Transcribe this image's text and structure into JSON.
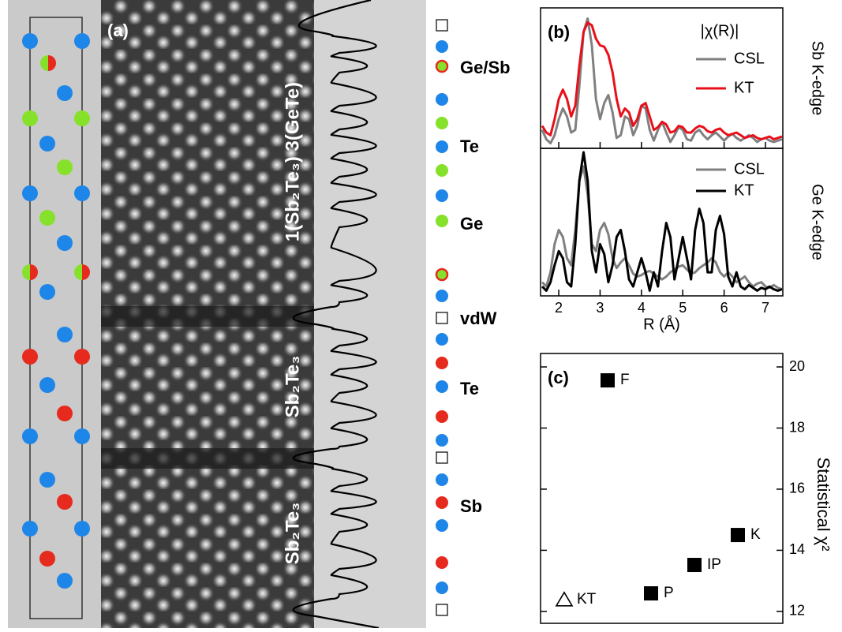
{
  "panel_a": {
    "label": "(a)",
    "layer_labels": [
      "1(Sb₂Te₃) 3(GeTe)",
      "Sb₂Te₃",
      "Sb₂Te₃"
    ],
    "site_labels": [
      "Ge/Sb",
      "Te",
      "Ge",
      "vdW",
      "Te",
      "Sb"
    ]
  },
  "chart_data": [
    {
      "type": "line",
      "panel_label": "(b)",
      "title": "|χ(R)|",
      "side_label": "Sb K-edge",
      "tick_labels": false,
      "x": [
        1.6,
        1.7,
        1.8,
        1.9,
        2.0,
        2.1,
        2.2,
        2.3,
        2.4,
        2.5,
        2.6,
        2.7,
        2.8,
        2.9,
        3.0,
        3.1,
        3.2,
        3.3,
        3.4,
        3.5,
        3.6,
        3.7,
        3.8,
        3.9,
        4.0,
        4.1,
        4.2,
        4.3,
        4.4,
        4.5,
        4.6,
        4.7,
        4.8,
        4.9,
        5.0,
        5.1,
        5.2,
        5.3,
        5.4,
        5.5,
        5.6,
        5.7,
        5.8,
        5.9,
        6.0,
        6.1,
        6.2,
        6.3,
        6.4,
        6.5,
        6.6,
        6.7,
        6.8,
        6.9,
        7.0,
        7.1,
        7.2,
        7.3,
        7.4
      ],
      "series": [
        {
          "name": "CSL",
          "color": "#808080",
          "values": [
            0.12,
            0.05,
            0.02,
            0.08,
            0.2,
            0.28,
            0.22,
            0.1,
            0.12,
            0.45,
            0.85,
            0.95,
            0.75,
            0.35,
            0.2,
            0.32,
            0.38,
            0.25,
            0.06,
            0.08,
            0.22,
            0.2,
            0.08,
            0.15,
            0.3,
            0.28,
            0.12,
            0.04,
            0.12,
            0.18,
            0.1,
            0.03,
            0.08,
            0.14,
            0.12,
            0.05,
            0.04,
            0.1,
            0.12,
            0.08,
            0.05,
            0.08,
            0.1,
            0.07,
            0.04,
            0.07,
            0.09,
            0.06,
            0.04,
            0.06,
            0.08,
            0.06,
            0.03,
            0.05,
            0.06,
            0.04,
            0.03,
            0.04,
            0.05
          ]
        },
        {
          "name": "KT",
          "color": "#e8101a",
          "values": [
            0.15,
            0.1,
            0.08,
            0.2,
            0.35,
            0.42,
            0.35,
            0.22,
            0.3,
            0.6,
            0.85,
            0.92,
            0.9,
            0.8,
            0.75,
            0.74,
            0.68,
            0.55,
            0.35,
            0.22,
            0.28,
            0.25,
            0.15,
            0.2,
            0.3,
            0.32,
            0.22,
            0.12,
            0.14,
            0.18,
            0.16,
            0.1,
            0.11,
            0.15,
            0.14,
            0.1,
            0.1,
            0.13,
            0.15,
            0.14,
            0.11,
            0.1,
            0.12,
            0.13,
            0.1,
            0.08,
            0.09,
            0.1,
            0.08,
            0.06,
            0.07,
            0.08,
            0.06,
            0.05,
            0.06,
            0.07,
            0.05,
            0.06,
            0.07
          ]
        }
      ],
      "xlim": [
        1.56,
        7.42
      ],
      "xticks": [
        2,
        3,
        4,
        5,
        6,
        7
      ],
      "ylim": [
        0,
        1
      ]
    },
    {
      "type": "line",
      "side_label": "Ge K-edge",
      "x_label": "R (Å)",
      "tick_labels": true,
      "x": [
        1.6,
        1.7,
        1.8,
        1.9,
        2.0,
        2.1,
        2.2,
        2.3,
        2.4,
        2.5,
        2.6,
        2.7,
        2.8,
        2.9,
        3.0,
        3.1,
        3.2,
        3.3,
        3.4,
        3.5,
        3.6,
        3.7,
        3.8,
        3.9,
        4.0,
        4.1,
        4.2,
        4.3,
        4.4,
        4.5,
        4.6,
        4.7,
        4.8,
        4.9,
        5.0,
        5.1,
        5.2,
        5.3,
        5.4,
        5.5,
        5.6,
        5.7,
        5.8,
        5.9,
        6.0,
        6.1,
        6.2,
        6.3,
        6.4,
        6.5,
        6.6,
        6.7,
        6.8,
        6.9,
        7.0,
        7.1,
        7.2,
        7.3,
        7.4
      ],
      "series": [
        {
          "name": "CSL",
          "color": "#808080",
          "values": [
            0.08,
            0.05,
            0.15,
            0.35,
            0.45,
            0.4,
            0.25,
            0.2,
            0.45,
            0.8,
            0.9,
            0.7,
            0.35,
            0.3,
            0.45,
            0.5,
            0.42,
            0.25,
            0.18,
            0.22,
            0.25,
            0.2,
            0.14,
            0.12,
            0.13,
            0.15,
            0.16,
            0.14,
            0.12,
            0.1,
            0.12,
            0.15,
            0.17,
            0.19,
            0.2,
            0.17,
            0.14,
            0.15,
            0.18,
            0.2,
            0.22,
            0.25,
            0.22,
            0.15,
            0.12,
            0.15,
            0.12,
            0.08,
            0.1,
            0.12,
            0.08,
            0.05,
            0.07,
            0.08,
            0.05,
            0.04,
            0.06,
            0.04,
            0.03
          ]
        },
        {
          "name": "KT",
          "color": "#000000",
          "values": [
            0.05,
            0.02,
            0.08,
            0.2,
            0.3,
            0.25,
            0.08,
            0.05,
            0.35,
            0.8,
            1.0,
            0.8,
            0.3,
            0.15,
            0.35,
            0.28,
            0.08,
            0.2,
            0.4,
            0.45,
            0.3,
            0.1,
            0.05,
            0.15,
            0.25,
            0.15,
            0.02,
            0.15,
            0.05,
            0.3,
            0.5,
            0.4,
            0.1,
            0.25,
            0.4,
            0.25,
            0.1,
            0.45,
            0.6,
            0.5,
            0.15,
            0.15,
            0.45,
            0.55,
            0.42,
            0.12,
            0.05,
            0.15,
            0.05,
            0.03,
            0.06,
            0.04,
            0.02,
            0.04,
            0.03,
            0.05,
            0.03,
            0.02,
            0.03
          ]
        }
      ],
      "xlim": [
        1.56,
        7.42
      ],
      "xticks": [
        2,
        3,
        4,
        5,
        6,
        7
      ],
      "ylim": [
        0,
        1
      ]
    },
    {
      "type": "scatter",
      "panel_label": "(c)",
      "y_label": "Statistical χ²",
      "categories": [
        "KT",
        "F",
        "P",
        "IP",
        "K"
      ],
      "values": [
        12.39,
        19.56,
        12.59,
        13.52,
        14.5
      ],
      "markers": [
        "triangle",
        "square",
        "square",
        "square",
        "square"
      ],
      "color": "#000000",
      "ylim": [
        11.61,
        20.44
      ],
      "yticks": [
        12,
        14,
        16,
        18,
        20
      ]
    }
  ]
}
